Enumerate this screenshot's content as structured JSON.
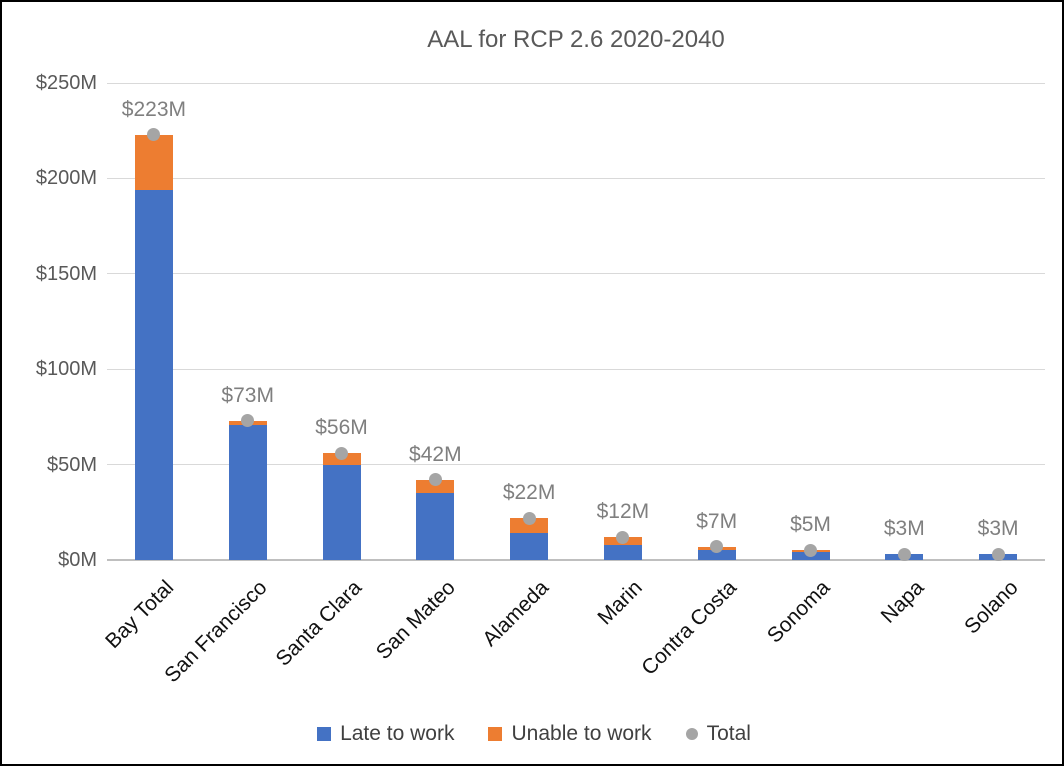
{
  "chart_data": {
    "type": "bar",
    "subtype": "stacked-column-with-total-marker",
    "title": "AAL for RCP 2.6 2020-2040",
    "categories": [
      "Bay Total",
      "San Francisco",
      "Santa Clara",
      "San Mateo",
      "Alameda",
      "Marin",
      "Contra Costa",
      "Sonoma",
      "Napa",
      "Solano"
    ],
    "series": [
      {
        "name": "Late to work",
        "type": "bar",
        "color": "#4472c4",
        "values": [
          194,
          71,
          50,
          35,
          14,
          8,
          5,
          4,
          3,
          3
        ]
      },
      {
        "name": "Unable to work",
        "type": "bar",
        "color": "#ed7d31",
        "values": [
          29,
          2,
          6,
          7,
          8,
          4,
          2,
          1,
          0,
          0
        ]
      },
      {
        "name": "Total",
        "type": "scatter",
        "color": "#a5a5a5",
        "values": [
          223,
          73,
          56,
          42,
          22,
          12,
          7,
          5,
          3,
          3
        ]
      }
    ],
    "data_labels": [
      "$223M",
      "$73M",
      "$56M",
      "$42M",
      "$22M",
      "$12M",
      "$7M",
      "$5M",
      "$3M",
      "$3M"
    ],
    "y_ticks": [
      {
        "label": "$250M",
        "value": 250
      },
      {
        "label": "$200M",
        "value": 200
      },
      {
        "label": "$150M",
        "value": 150
      },
      {
        "label": "$100M",
        "value": 100
      },
      {
        "label": "$50M",
        "value": 50
      },
      {
        "label": "$0M",
        "value": 0
      }
    ],
    "ylim": [
      0,
      250
    ],
    "xlabel": "",
    "ylabel": "",
    "grid": true,
    "legend_position": "bottom",
    "colors": {
      "gridline": "#d9d9d9",
      "baseline": "#bfbfbf",
      "title_text": "#595959",
      "axis_text": "#595959",
      "category_text": "#111111",
      "data_label_text": "#7f7f7f",
      "legend_text": "#404040",
      "background": "#ffffff",
      "frame_border": "#000000"
    }
  }
}
